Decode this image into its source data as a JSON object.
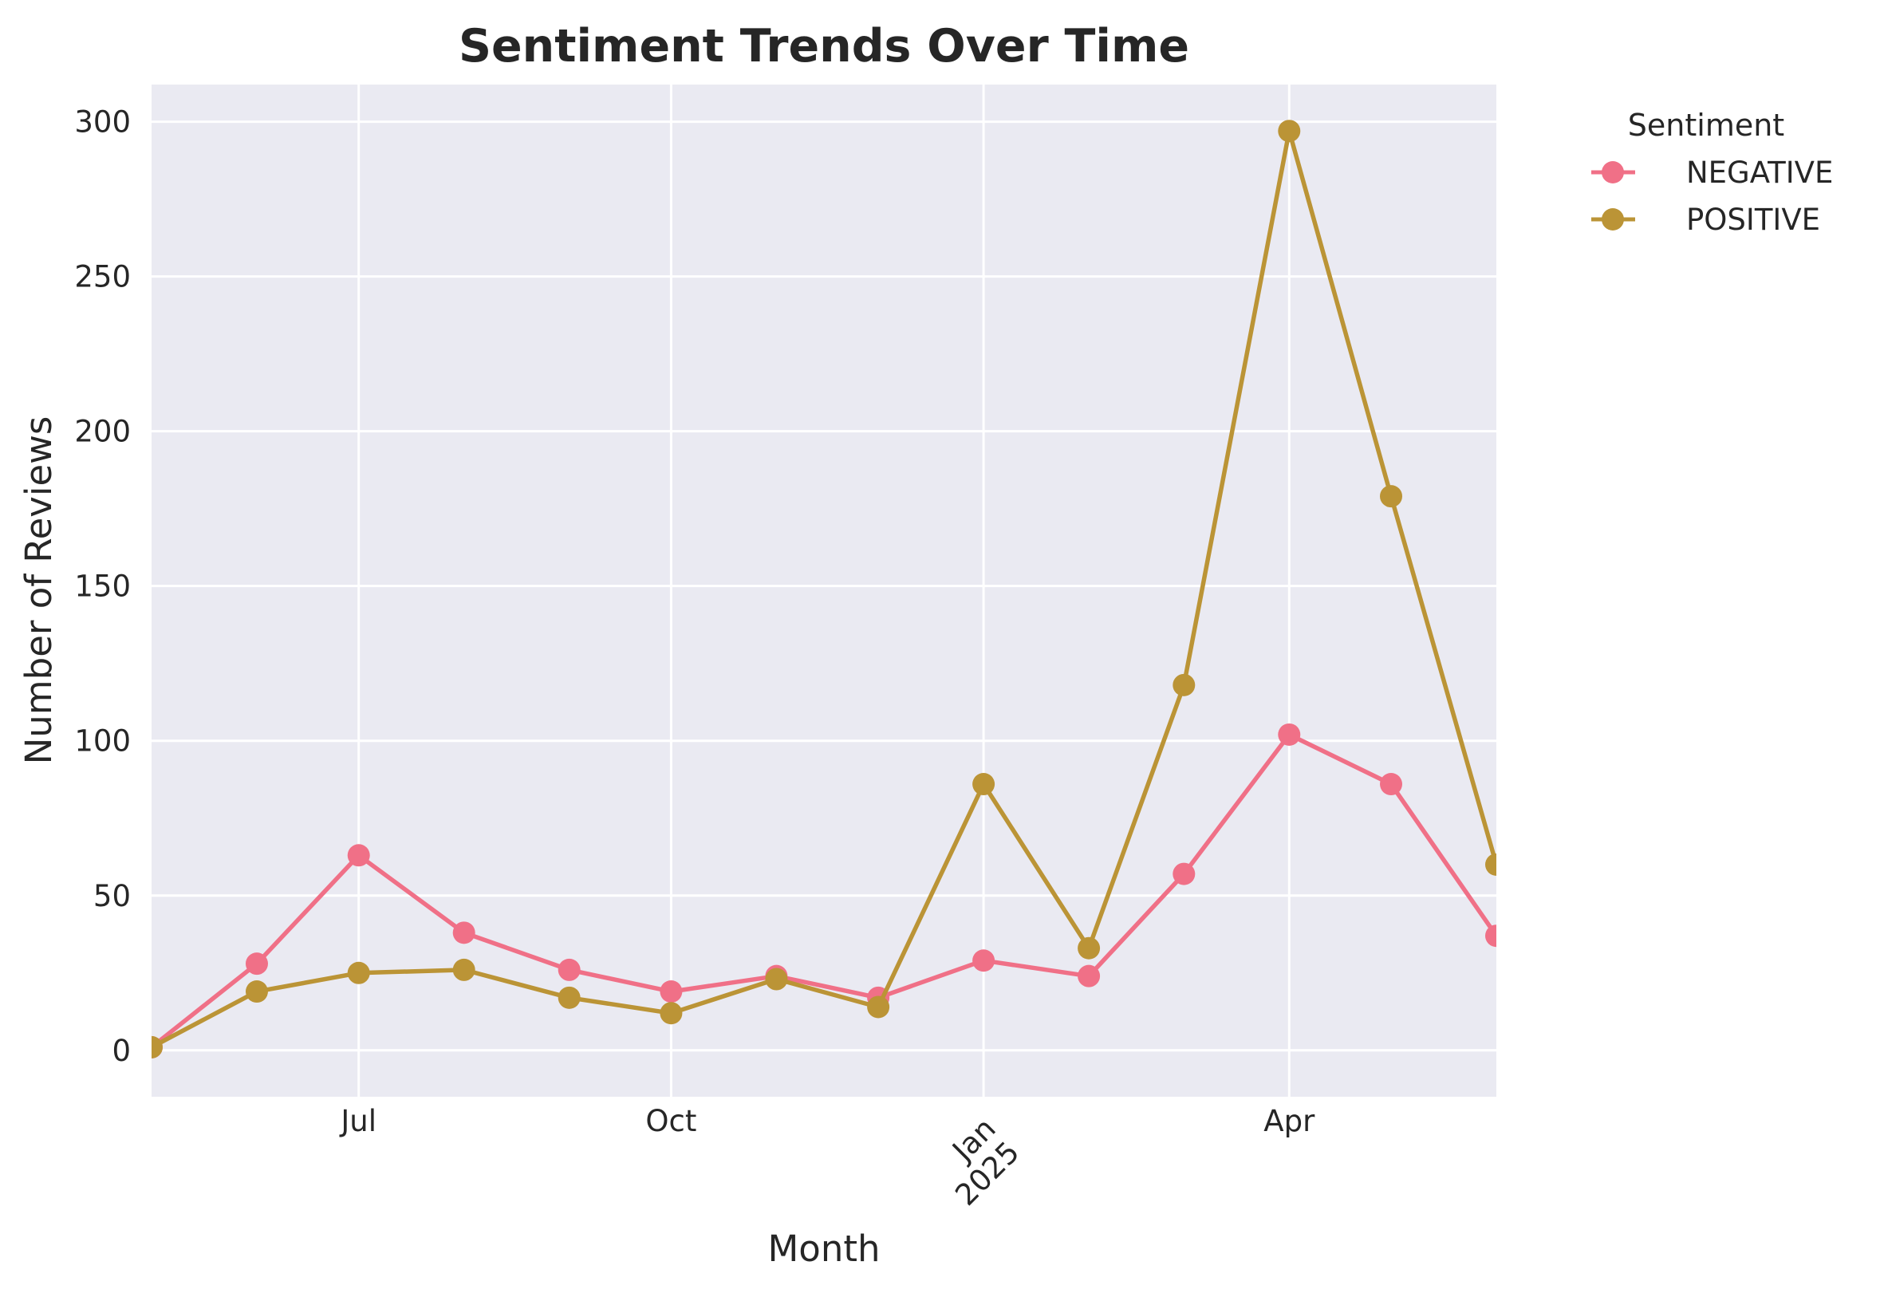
{
  "chart_data": {
    "type": "line",
    "title": "Sentiment Trends Over Time",
    "xlabel": "Month",
    "ylabel": "Number of Reviews",
    "x": [
      "2024-05",
      "2024-06",
      "2024-07",
      "2024-08",
      "2024-09",
      "2024-10",
      "2024-11",
      "2024-12",
      "2025-01",
      "2025-02",
      "2025-03",
      "2025-04",
      "2025-05",
      "2025-06"
    ],
    "series": [
      {
        "name": "NEGATIVE",
        "color": "#f07087",
        "values": [
          1,
          28,
          63,
          38,
          26,
          19,
          24,
          17,
          29,
          24,
          57,
          102,
          86,
          37
        ]
      },
      {
        "name": "POSITIVE",
        "color": "#bb9436",
        "values": [
          1,
          19,
          25,
          26,
          17,
          12,
          23,
          14,
          86,
          33,
          118,
          297,
          179,
          60
        ]
      }
    ],
    "ylim": [
      -15,
      312
    ],
    "y_ticks": [
      "0",
      "50",
      "100",
      "150",
      "200",
      "250",
      "300"
    ],
    "x_ticks": [
      {
        "month": "2024-07",
        "label": "Jul"
      },
      {
        "month": "2024-10",
        "label": "Oct"
      },
      {
        "month": "2025-01",
        "label": "Jan",
        "sublabel": "2025"
      },
      {
        "month": "2025-04",
        "label": "Apr"
      }
    ],
    "legend": {
      "title": "Sentiment",
      "placement": "outside-upper-right"
    },
    "grid": true,
    "plot_background": "#eaeaf2",
    "grid_color": "#ffffff"
  }
}
